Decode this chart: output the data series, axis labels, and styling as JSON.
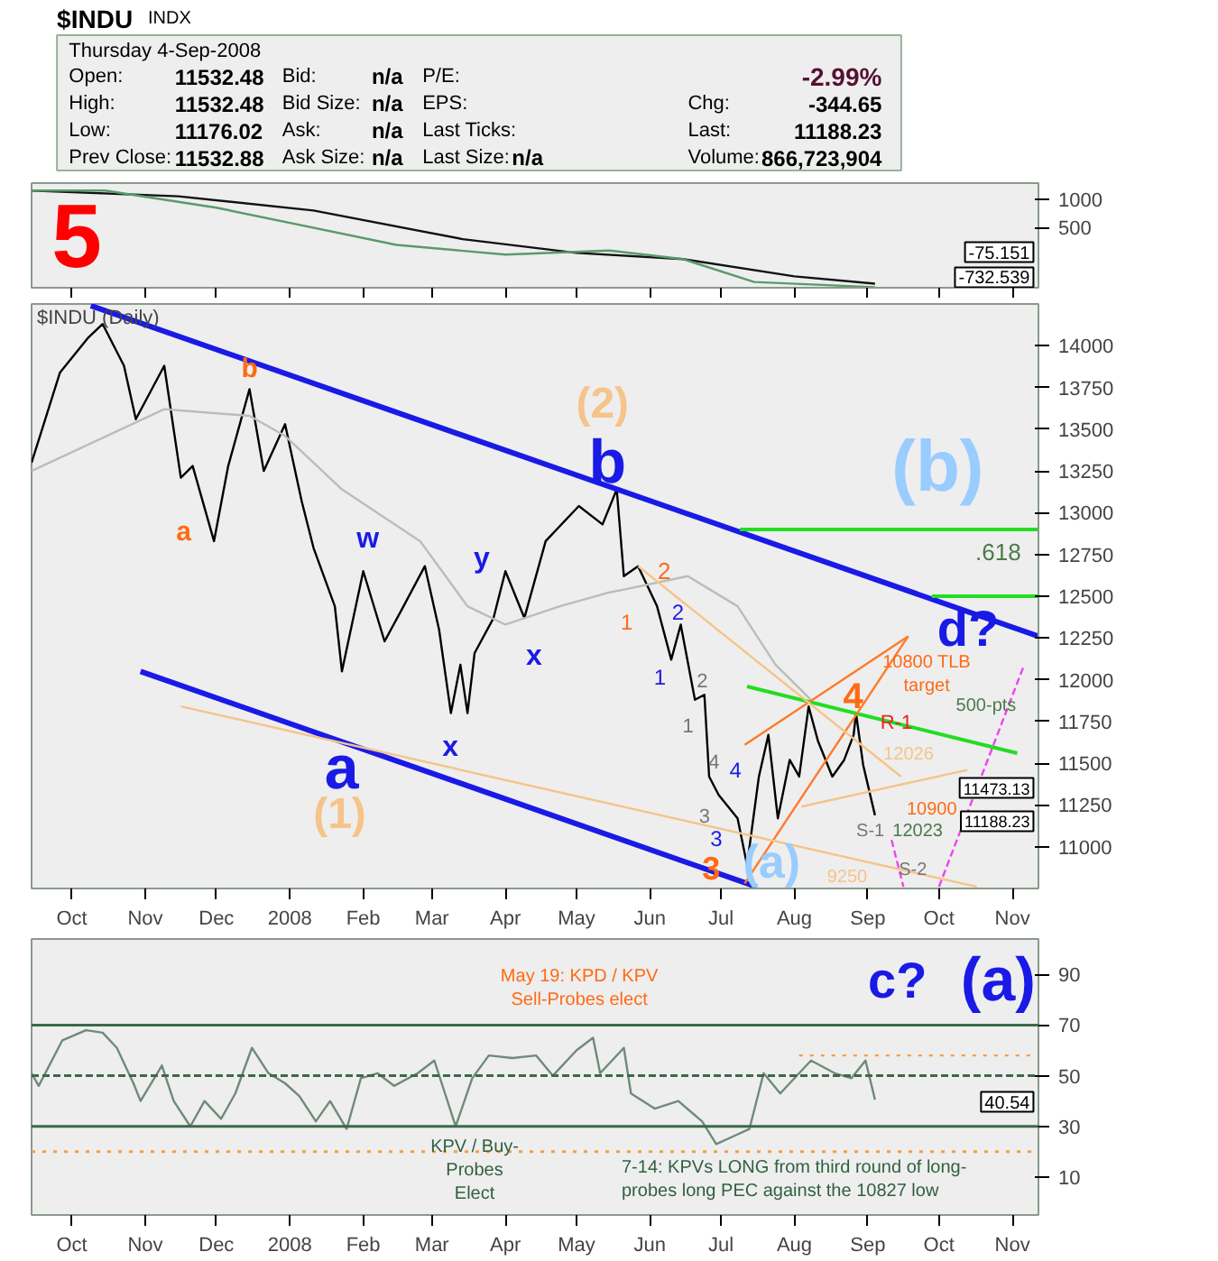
{
  "chart_data": [
    {
      "type": "other",
      "title": "$INDU",
      "subtitle": "INDX",
      "annotations": [
        "Thursday  4-Sep-2008",
        "Open:",
        "11532.48",
        "Bid:",
        "n/a",
        "P/E:",
        "-2.99%",
        "High:",
        "11532.48",
        "Bid Size:",
        "n/a",
        "EPS:",
        "Chg:",
        "-344.65",
        "Low:",
        "11176.02",
        "Ask:",
        "n/a",
        "Last Ticks:",
        "Last:",
        "11188.23",
        "Prev Close:",
        "11532.88",
        "Ask Size:",
        "n/a",
        "Last Size:",
        "n/a",
        "Volume:",
        "866,723,904"
      ]
    },
    {
      "type": "line",
      "xlim": [
        "2007-09-14",
        "2008-11-12"
      ],
      "ylim": [
        -550,
        1280
      ],
      "yticks": [
        1000,
        500
      ],
      "tick_labels": "y",
      "grid": false,
      "xticks": [
        {
          "value": "2007-10-01",
          "label": "Oct"
        },
        {
          "value": "2007-11-01",
          "label": "Nov"
        },
        {
          "value": "2007-12-01",
          "label": "Dec"
        },
        {
          "value": "2008-01-01",
          "label": "2008"
        },
        {
          "value": "2008-02-01",
          "label": "Feb"
        },
        {
          "value": "2008-03-01",
          "label": "Mar"
        },
        {
          "value": "2008-04-01",
          "label": "Apr"
        },
        {
          "value": "2008-05-01",
          "label": "May"
        },
        {
          "value": "2008-06-01",
          "label": "Jun"
        },
        {
          "value": "2008-07-01",
          "label": "Jul"
        },
        {
          "value": "2008-08-01",
          "label": "Aug"
        },
        {
          "value": "2008-09-01",
          "label": "Sep"
        },
        {
          "value": "2008-10-01",
          "label": "Oct"
        },
        {
          "value": "2008-11-01",
          "label": "Nov"
        }
      ],
      "series": [
        {
          "color": "#111111",
          "x": [
            "2007-09-14",
            "2007-11-15",
            "2008-01-11",
            "2008-03-14",
            "2008-05-01",
            "2008-06-15",
            "2008-08-01",
            "2008-09-04"
          ],
          "values": [
            1150,
            1050,
            800,
            300,
            60,
            -50,
            -350,
            -480
          ]
        },
        {
          "color": "#5a9a6a",
          "x": [
            "2007-09-14",
            "2007-10-15",
            "2007-12-01",
            "2008-02-15",
            "2008-04-01",
            "2008-05-15",
            "2008-06-15",
            "2008-07-15",
            "2008-09-04"
          ],
          "values": [
            1150,
            1150,
            850,
            200,
            30,
            100,
            -50,
            -450,
            -540
          ]
        }
      ],
      "annotations": [
        "5",
        "-75.151",
        "-732.539"
      ]
    },
    {
      "type": "line",
      "title": "$INDU (Daily)",
      "xlim": [
        "2007-09-14",
        "2008-11-12"
      ],
      "ylim": [
        10750,
        14250
      ],
      "grid": false,
      "yticks": [
        11000,
        11250,
        11500,
        11750,
        12000,
        12250,
        12500,
        12750,
        13000,
        13250,
        13500,
        13750,
        14000
      ],
      "xticks": [
        {
          "value": "2007-10-01",
          "label": "Oct"
        },
        {
          "value": "2007-11-01",
          "label": "Nov"
        },
        {
          "value": "2007-12-01",
          "label": "Dec"
        },
        {
          "value": "2008-01-01",
          "label": "2008"
        },
        {
          "value": "2008-02-01",
          "label": "Feb"
        },
        {
          "value": "2008-03-01",
          "label": "Mar"
        },
        {
          "value": "2008-04-01",
          "label": "Apr"
        },
        {
          "value": "2008-05-01",
          "label": "May"
        },
        {
          "value": "2008-06-01",
          "label": "Jun"
        },
        {
          "value": "2008-07-01",
          "label": "Jul"
        },
        {
          "value": "2008-08-01",
          "label": "Aug"
        },
        {
          "value": "2008-09-01",
          "label": "Sep"
        },
        {
          "value": "2008-10-01",
          "label": "Oct"
        },
        {
          "value": "2008-11-01",
          "label": "Nov"
        }
      ],
      "series": [
        {
          "color": "#000000",
          "x": [
            "2007-09-14",
            "2007-09-26",
            "2007-10-08",
            "2007-10-14",
            "2007-10-23",
            "2007-10-28",
            "2007-11-09",
            "2007-11-16",
            "2007-11-21",
            "2007-11-30",
            "2007-12-06",
            "2007-12-15",
            "2007-12-21",
            "2007-12-30",
            "2008-01-06",
            "2008-01-11",
            "2008-01-20",
            "2008-01-23",
            "2008-02-01",
            "2008-02-10",
            "2008-02-18",
            "2008-02-27",
            "2008-03-04",
            "2008-03-09",
            "2008-03-13",
            "2008-03-16",
            "2008-03-19",
            "2008-03-27",
            "2008-04-01",
            "2008-04-09",
            "2008-04-18",
            "2008-05-02",
            "2008-05-12",
            "2008-05-18",
            "2008-05-21",
            "2008-05-27",
            "2008-06-04",
            "2008-06-10",
            "2008-06-14",
            "2008-06-20",
            "2008-06-24",
            "2008-06-26",
            "2008-06-30",
            "2008-07-08",
            "2008-07-12",
            "2008-07-17",
            "2008-07-21",
            "2008-07-25",
            "2008-07-30",
            "2008-08-03",
            "2008-08-07",
            "2008-08-11",
            "2008-08-17",
            "2008-08-22",
            "2008-08-26",
            "2008-08-27",
            "2008-08-30",
            "2008-09-04"
          ],
          "values": [
            13300,
            13840,
            14050,
            14130,
            13880,
            13560,
            13880,
            13210,
            13280,
            12830,
            13280,
            13740,
            13250,
            13530,
            13070,
            12790,
            12440,
            12050,
            12650,
            12230,
            12440,
            12680,
            12300,
            11800,
            12090,
            11800,
            12160,
            12370,
            12650,
            12370,
            12830,
            13040,
            12930,
            13140,
            12620,
            12680,
            12440,
            12120,
            12330,
            11880,
            11910,
            11420,
            11310,
            11170,
            10890,
            11420,
            11670,
            11170,
            11520,
            11420,
            11840,
            11630,
            11420,
            11520,
            11670,
            11800,
            11490,
            11188.23
          ]
        },
        {
          "color": "#b8beb8",
          "x": [
            "2007-09-14",
            "2007-11-09",
            "2007-12-15",
            "2007-12-30",
            "2008-01-23",
            "2008-02-25",
            "2008-03-16",
            "2008-04-01",
            "2008-04-24",
            "2008-05-14",
            "2008-05-21",
            "2008-06-17",
            "2008-07-08",
            "2008-07-24",
            "2008-08-08"
          ],
          "values": [
            13250,
            13620,
            13580,
            13460,
            13140,
            12830,
            12440,
            12330,
            12440,
            12520,
            12540,
            12620,
            12440,
            12090,
            11880
          ]
        },
        {
          "color": "#1a1ae6",
          "x": [
            "2007-10-09",
            "2008-11-12"
          ],
          "values": [
            14240,
            12260
          ]
        },
        {
          "color": "#1a1ae6",
          "x": [
            "2007-10-30",
            "2008-07-16"
          ],
          "values": [
            12050,
            10760
          ]
        },
        {
          "color": "#22dd22",
          "x": [
            "2008-07-09",
            "2008-11-12"
          ],
          "values": [
            12900,
            12900
          ]
        },
        {
          "color": "#22dd22",
          "x": [
            "2008-09-28",
            "2008-11-12"
          ],
          "values": [
            12500,
            12500
          ]
        },
        {
          "color": "#22dd22",
          "x": [
            "2008-07-12",
            "2008-11-03"
          ],
          "values": [
            11960,
            11560
          ]
        },
        {
          "color": "#ff7a2a",
          "x": [
            "2008-07-11",
            "2008-09-18"
          ],
          "values": [
            10780,
            12260
          ]
        },
        {
          "color": "#ff7a2a",
          "x": [
            "2008-07-11",
            "2008-09-18"
          ],
          "values": [
            11610,
            12260
          ]
        },
        {
          "color": "#f5c48a",
          "x": [
            "2007-11-16",
            "2008-10-17"
          ],
          "values": [
            11840,
            10760
          ]
        },
        {
          "color": "#f5c48a",
          "x": [
            "2008-05-27",
            "2008-09-15"
          ],
          "values": [
            12680,
            11420
          ]
        },
        {
          "color": "#f5c48a",
          "x": [
            "2008-08-04",
            "2008-10-13"
          ],
          "values": [
            11240,
            11460
          ]
        },
        {
          "color": "#ee44ee",
          "line_style": "dashed",
          "x": [
            "2008-09-11",
            "2008-09-16"
          ],
          "values": [
            11040,
            10760
          ]
        },
        {
          "color": "#ee44ee",
          "line_style": "dashed",
          "x": [
            "2008-10-01",
            "2008-11-06"
          ],
          "values": [
            10760,
            12090
          ]
        }
      ],
      "annotations": [
        "a",
        {
          "text": "b",
          "x": "2007-12-15",
          "y": 13860
        },
        "w",
        "y",
        "x",
        "x",
        "a",
        "(1)",
        "(2)",
        "b",
        "1",
        {
          "text": "2",
          "x": "2008-06-07",
          "y": 12650
        },
        "2",
        "1",
        "2",
        "1",
        {
          "text": "4",
          "x": "2008-06-28",
          "y": 11510
        },
        "4",
        {
          "text": "3",
          "x": "2008-06-24",
          "y": 11190
        },
        "3",
        "3",
        "4",
        "10800 TLB target",
        {
          "text": "R-1",
          "x": "2008-09-13",
          "y": 11740
        },
        "500-pts",
        "12026",
        "10900",
        "S-1",
        "12023",
        {
          "text": "S-2",
          "x": "2008-09-20",
          "y": 10860
        },
        "9250",
        "(b)",
        "d?",
        ".618",
        "(a)",
        "11473.13",
        "11188.23"
      ]
    },
    {
      "type": "line",
      "xlim": [
        "2007-09-14",
        "2008-11-12"
      ],
      "ylim": [
        -5,
        104
      ],
      "yticks": [
        10,
        30,
        50,
        70,
        90
      ],
      "grid": false,
      "xticks": [
        {
          "value": "2007-10-01",
          "label": "Oct"
        },
        {
          "value": "2007-11-01",
          "label": "Nov"
        },
        {
          "value": "2007-12-01",
          "label": "Dec"
        },
        {
          "value": "2008-01-01",
          "label": "2008"
        },
        {
          "value": "2008-02-01",
          "label": "Feb"
        },
        {
          "value": "2008-03-01",
          "label": "Mar"
        },
        {
          "value": "2008-04-01",
          "label": "Apr"
        },
        {
          "value": "2008-05-01",
          "label": "May"
        },
        {
          "value": "2008-06-01",
          "label": "Jun"
        },
        {
          "value": "2008-07-01",
          "label": "Jul"
        },
        {
          "value": "2008-08-01",
          "label": "Aug"
        },
        {
          "value": "2008-09-01",
          "label": "Sep"
        },
        {
          "value": "2008-10-01",
          "label": "Oct"
        },
        {
          "value": "2008-11-01",
          "label": "Nov"
        }
      ],
      "ref_lines": [
        {
          "axis": "y",
          "value": 70,
          "color": "#3a6a4a"
        },
        {
          "axis": "y",
          "value": 30,
          "color": "#3a6a4a"
        },
        {
          "axis": "y",
          "value": 50,
          "color": "#3a6a4a",
          "line_style": "dashed"
        },
        {
          "axis": "y",
          "value": 20,
          "color": "#f5a040",
          "line_style": "dotted"
        }
      ],
      "series": [
        {
          "color": "#6f8a78",
          "x": [
            "2007-09-14",
            "2007-09-17",
            "2007-09-27",
            "2007-10-07",
            "2007-10-14",
            "2007-10-20",
            "2007-10-27",
            "2007-10-30",
            "2007-11-08",
            "2007-11-13",
            "2007-11-20",
            "2007-11-26",
            "2007-12-03",
            "2007-12-09",
            "2007-12-16",
            "2007-12-23",
            "2007-12-30",
            "2008-01-05",
            "2008-01-12",
            "2008-01-18",
            "2008-01-25",
            "2008-01-31",
            "2008-02-07",
            "2008-02-14",
            "2008-02-24",
            "2008-03-02",
            "2008-03-11",
            "2008-03-18",
            "2008-03-25",
            "2008-04-04",
            "2008-04-14",
            "2008-04-21",
            "2008-05-01",
            "2008-05-08",
            "2008-05-11",
            "2008-05-21",
            "2008-05-24",
            "2008-06-03",
            "2008-06-13",
            "2008-06-23",
            "2008-06-29",
            "2008-07-06",
            "2008-07-13",
            "2008-07-19",
            "2008-07-26",
            "2008-08-08",
            "2008-08-18",
            "2008-08-25",
            "2008-08-31",
            "2008-09-04"
          ],
          "values": [
            51,
            46,
            64,
            68,
            67,
            61,
            47,
            40,
            54,
            40,
            30,
            40,
            33,
            43,
            61,
            51,
            47,
            42,
            32,
            40,
            29,
            49,
            51,
            46,
            51,
            56,
            30,
            49,
            58,
            57,
            58,
            50,
            60,
            65,
            51,
            61,
            43,
            37,
            40,
            32,
            23,
            26,
            29,
            51,
            43,
            56,
            51,
            49,
            56,
            40.54
          ]
        },
        {
          "color": "#f5a040",
          "line_style": "dotted",
          "x": [
            "2008-08-03",
            "2008-11-12"
          ],
          "values": [
            58,
            58
          ]
        }
      ],
      "annotations": [
        "May 19: KPD / KPV Sell-Probes elect",
        "KPV / Buy-Probes Elect",
        "7-14: KPVs LONG from third round of long-probes long PEC against the 10827 low",
        "c?",
        "(a)",
        "40.54"
      ]
    }
  ]
}
